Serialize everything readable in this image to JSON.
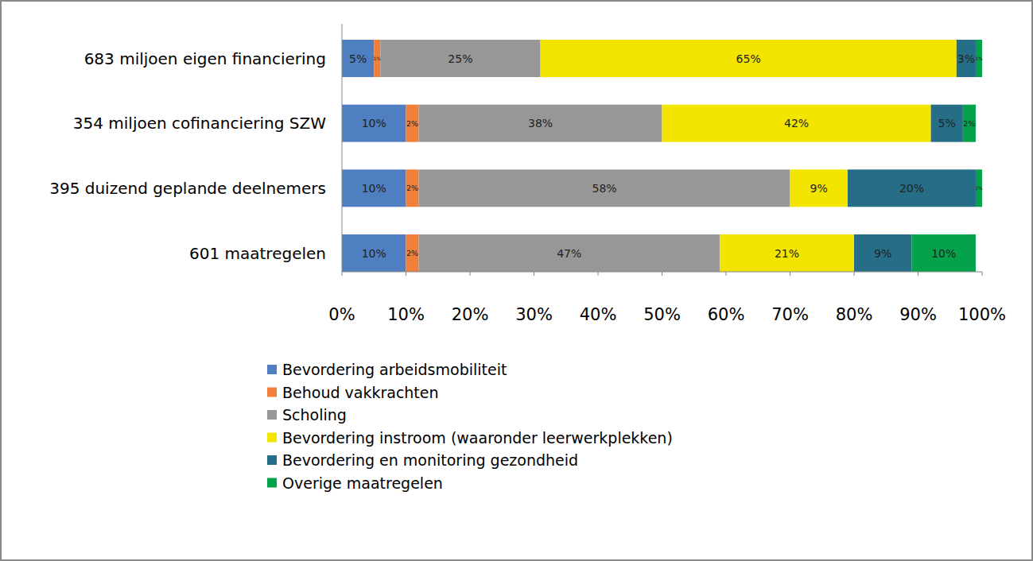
{
  "chart_data": {
    "type": "bar",
    "orientation": "horizontal",
    "stacked": true,
    "data_labels": true,
    "legend": "bottom",
    "grid": false,
    "categories": [
      "683 miljoen eigen financiering",
      "354 miljoen cofinanciering SZW",
      "395 duizend geplande deelnemers",
      "601 maatregelen"
    ],
    "xlim": [
      0,
      100
    ],
    "xticks": [
      {
        "value": 0,
        "label": "0%"
      },
      {
        "value": 10,
        "label": "10%"
      },
      {
        "value": 20,
        "label": "20%"
      },
      {
        "value": 30,
        "label": "30%"
      },
      {
        "value": 40,
        "label": "40%"
      },
      {
        "value": 50,
        "label": "50%"
      },
      {
        "value": 60,
        "label": "60%"
      },
      {
        "value": 70,
        "label": "70%"
      },
      {
        "value": 80,
        "label": "80%"
      },
      {
        "value": 90,
        "label": "90%"
      },
      {
        "value": 100,
        "label": "100%"
      }
    ],
    "series": [
      {
        "name": "Bevordering arbeidsmobiliteit",
        "color": "#4f7ec1",
        "values": [
          5,
          10,
          10,
          10
        ],
        "value_labels": [
          "5%",
          "10%",
          "10%",
          "10%"
        ]
      },
      {
        "name": "Behoud vakkrachten",
        "color": "#ef7f3a",
        "values": [
          1,
          2,
          2,
          2
        ],
        "value_labels": [
          "1%",
          "2%",
          "2%",
          "2%"
        ]
      },
      {
        "name": "Scholing",
        "color": "#979797",
        "values": [
          25,
          38,
          58,
          47
        ],
        "value_labels": [
          "25%",
          "38%",
          "58%",
          "47%"
        ]
      },
      {
        "name": "Bevordering instroom (waaronder leerwerkplekken)",
        "color": "#f3e500",
        "values": [
          65,
          42,
          9,
          21
        ],
        "value_labels": [
          "65%",
          "42%",
          "9%",
          "21%"
        ]
      },
      {
        "name": "Bevordering en monitoring gezondheid",
        "color": "#266e88",
        "values": [
          3,
          5,
          20,
          9
        ],
        "value_labels": [
          "3%",
          "5%",
          "20%",
          "9%"
        ]
      },
      {
        "name": "Overige maatregelen",
        "color": "#03a24b",
        "values": [
          1,
          2,
          1,
          10
        ],
        "value_labels": [
          "1%",
          "2%",
          "1%",
          "10%"
        ]
      }
    ]
  }
}
